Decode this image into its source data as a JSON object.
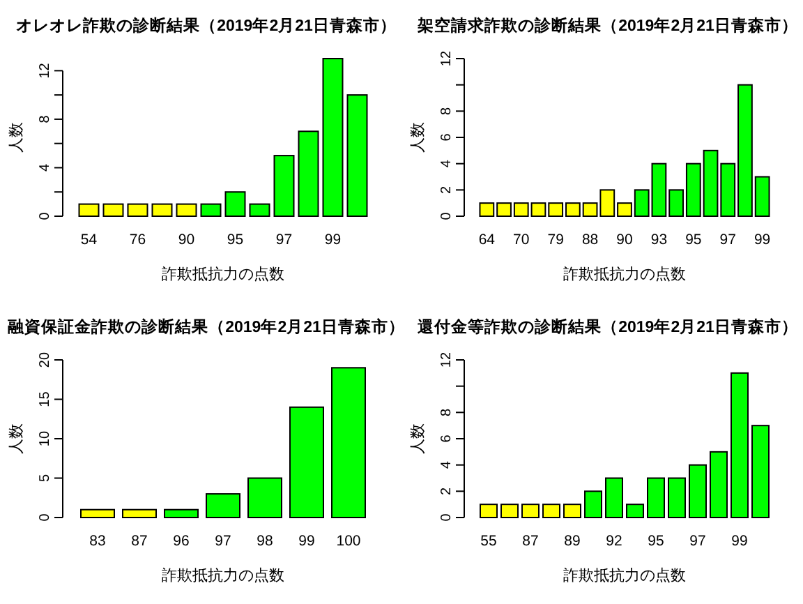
{
  "chart_data": [
    {
      "type": "bar",
      "title": "オレオレ詐欺の診断結果（2019年2月21日青森市）",
      "xlabel": "詐欺抵抗力の点数",
      "ylabel": "人数",
      "categories": [
        "54",
        null,
        "76",
        null,
        "90",
        null,
        "95",
        null,
        "97",
        null,
        "99",
        null
      ],
      "values": [
        1,
        1,
        1,
        1,
        1,
        1,
        2,
        1,
        5,
        7,
        13,
        10
      ],
      "colors": [
        "#ffff00",
        "#ffff00",
        "#ffff00",
        "#ffff00",
        "#ffff00",
        "#00ff00",
        "#00ff00",
        "#00ff00",
        "#00ff00",
        "#00ff00",
        "#00ff00",
        "#00ff00"
      ],
      "ylim": [
        0,
        13
      ],
      "yticks": [
        0,
        {
          "value": 2,
          "label": null
        },
        4,
        {
          "value": 6,
          "label": null
        },
        8,
        {
          "value": 10,
          "label": null
        },
        12
      ]
    },
    {
      "type": "bar",
      "title": "架空請求詐欺の診断結果（2019年2月21日青森市）",
      "xlabel": "詐欺抵抗力の点数",
      "ylabel": "人数",
      "categories": [
        "64",
        null,
        "70",
        null,
        "79",
        null,
        "88",
        null,
        "90",
        null,
        "93",
        null,
        "95",
        null,
        "97",
        null,
        "99"
      ],
      "values": [
        1,
        1,
        1,
        1,
        1,
        1,
        1,
        2,
        1,
        2,
        4,
        2,
        4,
        5,
        4,
        10,
        3
      ],
      "colors": [
        "#ffff00",
        "#ffff00",
        "#ffff00",
        "#ffff00",
        "#ffff00",
        "#ffff00",
        "#ffff00",
        "#ffff00",
        "#ffff00",
        "#00ff00",
        "#00ff00",
        "#00ff00",
        "#00ff00",
        "#00ff00",
        "#00ff00",
        "#00ff00",
        "#00ff00"
      ],
      "ylim": [
        0,
        12
      ],
      "yticks": [
        0,
        2,
        4,
        6,
        8,
        {
          "value": 10,
          "label": null
        },
        12
      ]
    },
    {
      "type": "bar",
      "title": "融資保証金詐欺の診断結果（2019年2月21日青森市）",
      "xlabel": "詐欺抵抗力の点数",
      "ylabel": "人数",
      "categories": [
        "83",
        "87",
        "96",
        "97",
        "98",
        "99",
        "100"
      ],
      "values": [
        1,
        1,
        1,
        3,
        5,
        14,
        19
      ],
      "colors": [
        "#ffff00",
        "#ffff00",
        "#00ff00",
        "#00ff00",
        "#00ff00",
        "#00ff00",
        "#00ff00"
      ],
      "ylim": [
        0,
        20
      ],
      "yticks": [
        0,
        5,
        10,
        15,
        20
      ]
    },
    {
      "type": "bar",
      "title": "還付金等詐欺の診断結果（2019年2月21日青森市）",
      "xlabel": "詐欺抵抗力の点数",
      "ylabel": "人数",
      "categories": [
        "55",
        null,
        "87",
        null,
        "89",
        null,
        "92",
        null,
        "95",
        null,
        "97",
        null,
        "99",
        null
      ],
      "values": [
        1,
        1,
        1,
        1,
        1,
        2,
        3,
        1,
        3,
        3,
        4,
        5,
        11,
        7
      ],
      "colors": [
        "#ffff00",
        "#ffff00",
        "#ffff00",
        "#ffff00",
        "#ffff00",
        "#00ff00",
        "#00ff00",
        "#00ff00",
        "#00ff00",
        "#00ff00",
        "#00ff00",
        "#00ff00",
        "#00ff00",
        "#00ff00"
      ],
      "ylim": [
        0,
        12
      ],
      "yticks": [
        0,
        2,
        4,
        6,
        8,
        {
          "value": 10,
          "label": null
        },
        12
      ]
    }
  ]
}
